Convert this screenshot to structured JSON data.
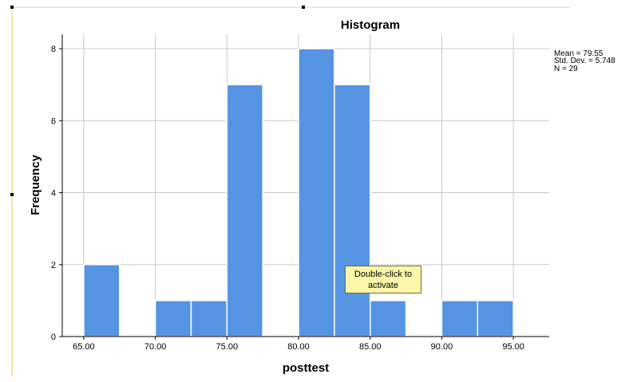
{
  "chart_data": {
    "type": "bar",
    "title": "Histogram",
    "xlabel": "posttest",
    "ylabel": "Frequency",
    "bin_width": 2.5,
    "bins": [
      {
        "start": 65.0,
        "end": 67.5,
        "count": 2
      },
      {
        "start": 67.5,
        "end": 70.0,
        "count": 0
      },
      {
        "start": 70.0,
        "end": 72.5,
        "count": 1
      },
      {
        "start": 72.5,
        "end": 75.0,
        "count": 1
      },
      {
        "start": 75.0,
        "end": 77.5,
        "count": 7
      },
      {
        "start": 77.5,
        "end": 80.0,
        "count": 0
      },
      {
        "start": 80.0,
        "end": 82.5,
        "count": 8
      },
      {
        "start": 82.5,
        "end": 85.0,
        "count": 7
      },
      {
        "start": 85.0,
        "end": 87.5,
        "count": 1
      },
      {
        "start": 87.5,
        "end": 90.0,
        "count": 0
      },
      {
        "start": 90.0,
        "end": 92.5,
        "count": 1
      },
      {
        "start": 92.5,
        "end": 95.0,
        "count": 1
      }
    ],
    "xlim": [
      63.5,
      97.5
    ],
    "ylim": [
      0,
      8.4
    ],
    "x_ticks": [
      "65.00",
      "70.00",
      "75.00",
      "80.00",
      "85.00",
      "90.00",
      "95.00"
    ],
    "x_tick_values": [
      65,
      70,
      75,
      80,
      85,
      90,
      95
    ],
    "y_ticks": [
      "0",
      "2",
      "4",
      "6",
      "8"
    ],
    "y_tick_values": [
      0,
      2,
      4,
      6,
      8
    ],
    "grid": true,
    "bar_color": "#5594e3",
    "stats": {
      "mean": "Mean = 79.55",
      "std_dev": "Std. Dev. = 5.748",
      "n": "N = 29"
    }
  },
  "tooltip": {
    "line1": "Double-click to",
    "line2": "activate"
  }
}
